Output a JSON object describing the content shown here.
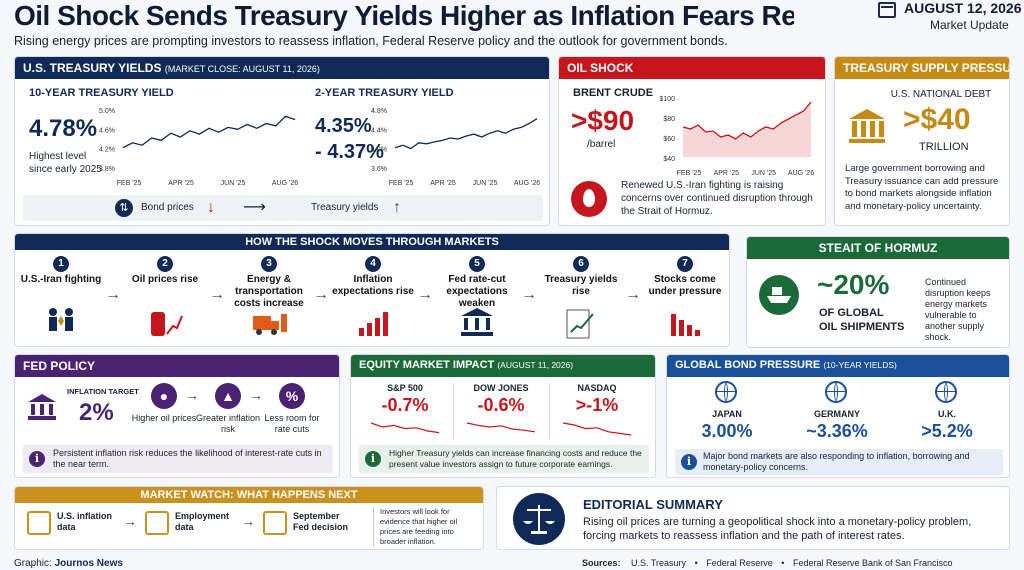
{
  "header": {
    "title": "Oil Shock Sends Treasury Yields Higher as Inflation Fears Return",
    "subtitle": "Rising energy prices are prompting investors to reassess inflation, Federal Reserve policy and the outlook for government bonds.",
    "date": "AUGUST 12, 2026",
    "date_label": "Market Update"
  },
  "yields": {
    "title": "U.S. TREASURY YIELDS",
    "title_note": "(MARKET CLOSE: AUGUST 11, 2026)",
    "ten": {
      "label": "10-YEAR TREASURY YIELD",
      "value": "4.78%",
      "note_line1": "Highest level",
      "note_line2": "since early 2025",
      "yticks": [
        "5.0%",
        "4.6%",
        "4.2%",
        "3.8%"
      ],
      "xticks": [
        "FEB '25",
        "APR '25",
        "JUN '25",
        "AUG '26"
      ]
    },
    "two": {
      "label": "2-YEAR TREASURY YIELD",
      "value": "4.35%",
      "value2": "- 4.37%",
      "yticks": [
        "4.8%",
        "4.4%",
        "4.0%",
        "3.6%"
      ],
      "xticks": [
        "FEB '25",
        "APR '25",
        "JUN '25",
        "AUG '26"
      ]
    },
    "relation": {
      "left": "Bond prices",
      "right": "Treasury yields"
    }
  },
  "oil": {
    "title": "OIL SHOCK",
    "label": "BRENT CRUDE",
    "value": ">$90",
    "unit": "/barrel",
    "yticks": [
      "$100",
      "$80",
      "$60",
      "$40"
    ],
    "xticks": [
      "FEB '25",
      "APR '25",
      "JUN '25",
      "AUG '26"
    ],
    "note": "Renewed U.S.-Iran fighting is raising concerns over continued disruption through the Strait of Hormuz."
  },
  "supply": {
    "title": "TREASURY SUPPLY PRESSURE",
    "label": "U.S. NATIONAL DEBT",
    "value": ">$40",
    "unit": "TRILLION",
    "note": "Large government borrowing and Treasury issuance can add pressure to bond markets alongside inflation and monetary-policy uncertainty."
  },
  "shock": {
    "title": "HOW THE SHOCK MOVES THROUGH MARKETS",
    "steps": [
      {
        "n": "1",
        "label": "U.S.-Iran fighting"
      },
      {
        "n": "2",
        "label": "Oil prices rise"
      },
      {
        "n": "3",
        "label": "Energy & transportation costs increase"
      },
      {
        "n": "4",
        "label": "Inflation expectations rise"
      },
      {
        "n": "5",
        "label": "Fed rate-cut expectations weaken"
      },
      {
        "n": "6",
        "label": "Treasury yields rise"
      },
      {
        "n": "7",
        "label": "Stocks come under pressure"
      }
    ]
  },
  "hormuz": {
    "title": "STEAIT OF HORMUZ",
    "value": "~20%",
    "label1": "OF GLOBAL",
    "label2": "OIL SHIPMENTS",
    "note": "Continued disruption keeps energy markets vulnerable to another supply shock."
  },
  "fed": {
    "title": "FED POLICY",
    "target_label": "INFLATION TARGET",
    "target": "2%",
    "items": [
      "Higher oil prices",
      "Greater inflation risk",
      "Less room for rate cuts"
    ],
    "note": "Persistent inflation risk reduces the likelihood of interest-rate cuts in the near term."
  },
  "equity": {
    "title": "EQUITY MARKET IMPACT",
    "title_note": "(AUGUST 11, 2026)",
    "items": [
      {
        "name": "S&P 500",
        "value": "-0.7%"
      },
      {
        "name": "DOW JONES",
        "value": "-0.6%"
      },
      {
        "name": "NASDAQ",
        "value": ">-1%"
      }
    ],
    "note": "Higher Treasury yields can increase financing costs and reduce the present value investors assign to future corporate earnings."
  },
  "global": {
    "title": "GLOBAL BOND PRESSURE",
    "title_note": "(10-YEAR YIELDS)",
    "items": [
      {
        "name": "JAPAN",
        "value": "3.00%"
      },
      {
        "name": "GERMANY",
        "value": "~3.36%"
      },
      {
        "name": "U.K.",
        "value": ">5.2%"
      }
    ],
    "note": "Major bond markets are also responding to inflation, borrowing and monetary-policy concerns."
  },
  "watch": {
    "title": "MARKET WATCH: WHAT HAPPENS NEXT",
    "items": [
      "U.S. inflation data",
      "Employment data",
      "September Fed decision"
    ],
    "note": "Investors will look for evidence that higher oil prices are feeding into broader inflation."
  },
  "editorial": {
    "title": "EDITORIAL SUMMARY",
    "text": "Rising oil prices are turning a geopolitical shock into a monetary-policy problem, forcing markets to reassess inflation and the path of interest rates."
  },
  "footer": {
    "graphic_label": "Graphic:",
    "graphic_by": "Journos News",
    "sources_label": "Sources:",
    "sources": [
      "U.S. Treasury",
      "Federal Reserve",
      "Federal Reserve Bank of San Francisco"
    ]
  },
  "colors": {
    "navy": "#0f2a56",
    "red": "#c4161c",
    "gold": "#c48a14",
    "green": "#1c6a3a",
    "purple": "#4a2472",
    "blue": "#1a4f99"
  },
  "icons": [
    "calendar-icon",
    "bond-arrows-icon",
    "oil-drop-icon",
    "bank-icon",
    "fighters-icon",
    "oil-barrel-icon",
    "truck-icon",
    "chart-up-icon",
    "fed-building-icon",
    "document-chart-icon",
    "chart-down-icon",
    "ship-icon",
    "info-icon",
    "droplet-icon",
    "percent-icon",
    "globe-icon",
    "people-icon",
    "scales-icon"
  ]
}
